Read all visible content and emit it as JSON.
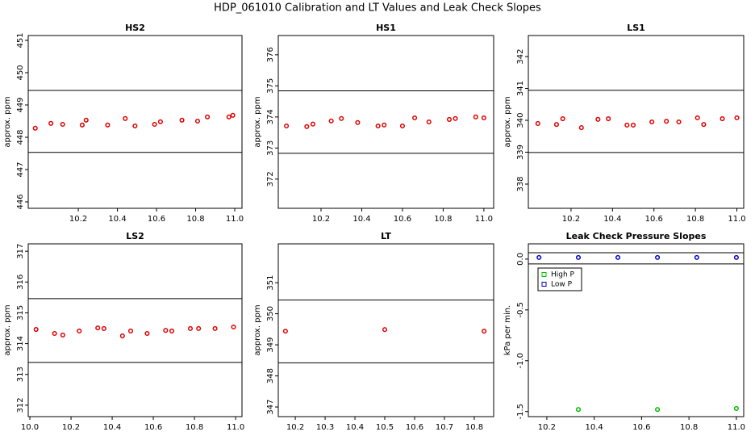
{
  "title": "HDP_061010  Calibration and LT Values and Leak Check Slopes",
  "chart_data": [
    {
      "type": "scatter",
      "title": "HS2",
      "y_label": "approx. ppm",
      "color": "#e00000",
      "x": [
        9.98,
        10.06,
        10.12,
        10.22,
        10.24,
        10.35,
        10.44,
        10.49,
        10.59,
        10.62,
        10.73,
        10.81,
        10.86,
        10.97,
        10.99
      ],
      "values": [
        448.28,
        448.43,
        448.4,
        448.38,
        448.53,
        448.38,
        448.58,
        448.35,
        448.4,
        448.48,
        448.53,
        448.5,
        448.63,
        448.63,
        448.68
      ],
      "hlines": [
        449.45,
        447.53
      ],
      "xlim": [
        9.944,
        11.037
      ],
      "ylim": [
        445.8,
        451.15
      ],
      "xticks": [
        10.2,
        10.4,
        10.6,
        10.8,
        {
          "value": 11,
          "label": "11.0"
        }
      ],
      "yticks": [
        446,
        447,
        448,
        449,
        450,
        451
      ]
    },
    {
      "type": "scatter",
      "title": "HS1",
      "y_label": "approx. ppm",
      "color": "#e00000",
      "x": [
        10.03,
        10.13,
        10.16,
        10.25,
        10.3,
        10.38,
        10.48,
        10.51,
        10.6,
        10.66,
        10.73,
        10.83,
        10.86,
        10.96,
        11.0
      ],
      "values": [
        373.71,
        373.69,
        373.77,
        373.87,
        373.95,
        373.82,
        373.71,
        373.74,
        373.71,
        373.97,
        373.84,
        373.92,
        373.95,
        374.0,
        373.97
      ],
      "hlines": [
        374.84,
        372.83
      ],
      "xlim": [
        9.99,
        11.048
      ],
      "ylim": [
        371.06,
        376.62
      ],
      "xticks": [
        10.2,
        10.4,
        10.6,
        10.8,
        {
          "value": 11,
          "label": "11.0"
        }
      ],
      "yticks": [
        372,
        373,
        374,
        375,
        376
      ]
    },
    {
      "type": "scatter",
      "title": "LS1",
      "y_label": "approx. ppm",
      "color": "#e00000",
      "x": [
        10.04,
        10.13,
        10.16,
        10.25,
        10.33,
        10.38,
        10.47,
        10.5,
        10.59,
        10.66,
        10.72,
        10.81,
        10.84,
        10.93,
        11.0
      ],
      "values": [
        339.9,
        339.87,
        340.05,
        339.77,
        340.03,
        340.05,
        339.85,
        339.85,
        339.95,
        339.97,
        339.95,
        340.08,
        339.87,
        340.05,
        340.08
      ],
      "hlines": [
        340.94,
        338.99
      ],
      "xlim": [
        9.994,
        11.033
      ],
      "ylim": [
        337.24,
        342.66
      ],
      "xticks": [
        10.2,
        10.4,
        10.6,
        10.8,
        {
          "value": 11,
          "label": "11.0"
        }
      ],
      "yticks": [
        338,
        339,
        340,
        341,
        342
      ]
    },
    {
      "type": "scatter",
      "title": "LS2",
      "y_label": "approx. ppm",
      "color": "#e00000",
      "x": [
        10.03,
        10.12,
        10.16,
        10.24,
        10.33,
        10.36,
        10.45,
        10.49,
        10.57,
        10.66,
        10.69,
        10.78,
        10.82,
        10.9,
        10.99
      ],
      "values": [
        314.46,
        314.33,
        314.28,
        314.41,
        314.51,
        314.49,
        314.25,
        314.41,
        314.33,
        314.43,
        314.41,
        314.49,
        314.49,
        314.49,
        314.54
      ],
      "hlines": [
        315.46,
        313.39
      ],
      "xlim": [
        9.992,
        11.031
      ],
      "ylim": [
        311.63,
        317.24
      ],
      "xticks": [
        {
          "value": 10,
          "label": "10.0"
        },
        10.2,
        10.4,
        10.6,
        10.8,
        {
          "value": 11,
          "label": "11.0"
        }
      ],
      "yticks": [
        312,
        313,
        314,
        315,
        316,
        317
      ]
    },
    {
      "type": "scatter",
      "title": "LT",
      "y_label": "approx. ppm",
      "color": "#e00000",
      "x": [
        10.167,
        10.5,
        10.833
      ],
      "values": [
        349.44,
        349.49,
        349.44
      ],
      "hlines": [
        350.44,
        348.42
      ],
      "xlim": [
        10.143,
        10.865
      ],
      "ylim": [
        346.69,
        352.25
      ],
      "xticks": [
        10.2,
        10.3,
        10.4,
        10.5,
        10.6,
        10.7,
        10.8
      ],
      "yticks": [
        347,
        348,
        349,
        350,
        351
      ]
    },
    {
      "type": "scatter",
      "title": "Leak Check Pressure Slopes",
      "y_label": "kPa per min.",
      "legend": "topleft",
      "series": [
        {
          "name": "High P",
          "color": "#00c000",
          "x": [
            10.333,
            10.667,
            11.0
          ],
          "values": [
            -1.48,
            -1.48,
            -1.47
          ]
        },
        {
          "name": "Low P",
          "color": "#0000cc",
          "x": [
            10.167,
            10.333,
            10.5,
            10.667,
            10.833,
            11.0
          ],
          "values": [
            0.016,
            0.016,
            0.016,
            0.016,
            0.016,
            0.016
          ]
        }
      ],
      "hlines": [
        0.063,
        -0.048
      ],
      "xlim": [
        10.122,
        11.031
      ],
      "ylim": [
        -1.55,
        0.15
      ],
      "xticks": [
        10.2,
        10.4,
        10.6,
        10.8,
        {
          "value": 11,
          "label": "11.0"
        }
      ],
      "yticks": [
        {
          "value": 0,
          "label": "0.0"
        },
        -0.5,
        {
          "value": -1,
          "label": "-1.0"
        },
        -1.5
      ]
    }
  ]
}
